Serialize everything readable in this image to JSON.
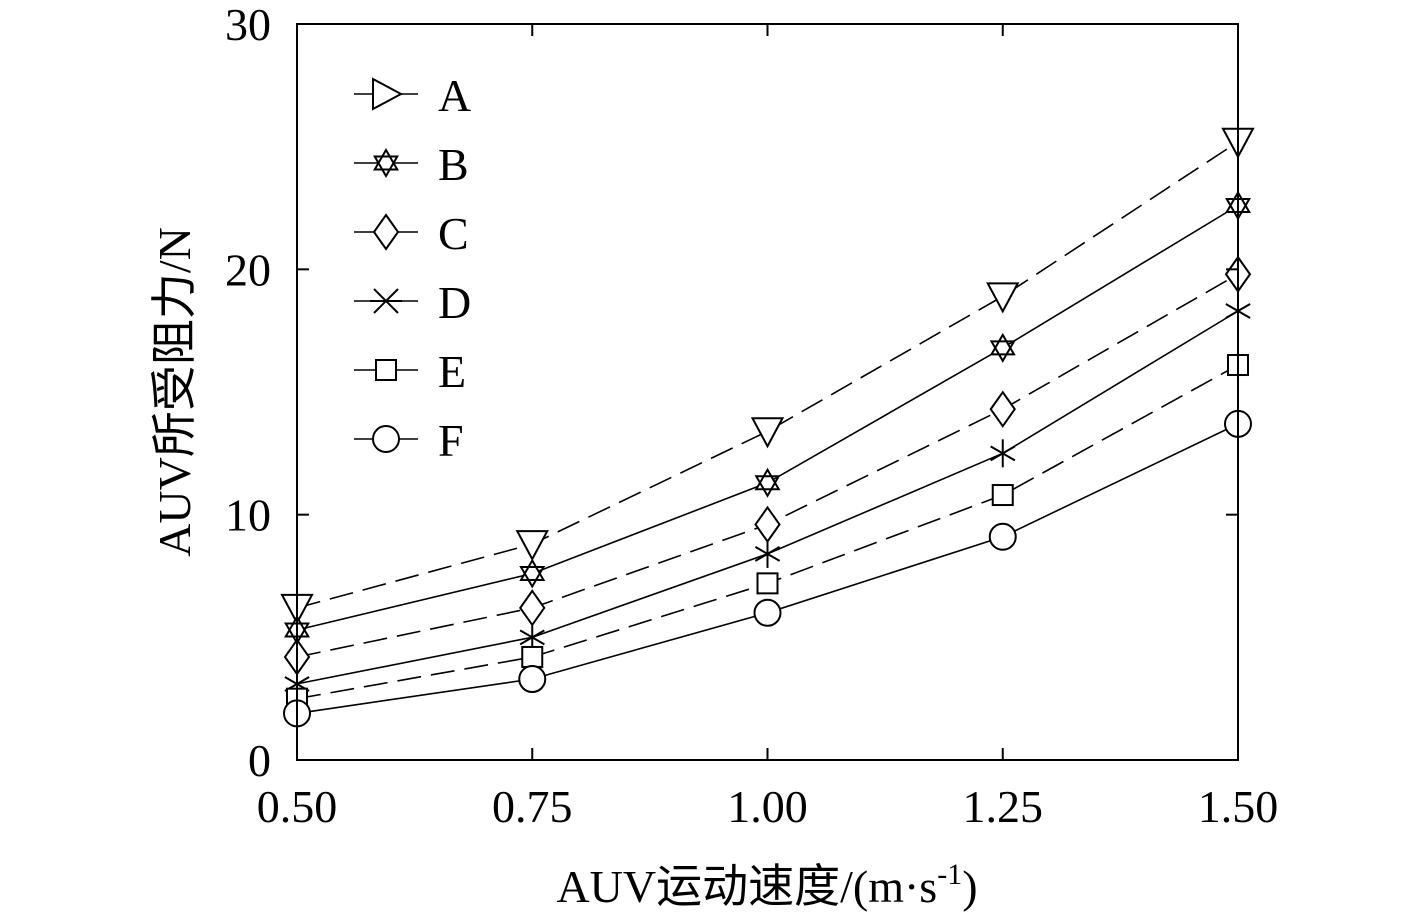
{
  "chart_data": {
    "type": "line",
    "title": "",
    "xlabel": "AUV运动速度/(m·s",
    "xlabel_sup": "-1",
    "xlabel_tail": ")",
    "ylabel": "AUV所受阻力/N",
    "x": [
      0.5,
      0.75,
      1.0,
      1.25,
      1.5
    ],
    "xticks": [
      0.5,
      0.75,
      1.0,
      1.25,
      1.5
    ],
    "xtick_labels": [
      "0.50",
      "0.75",
      "1.00",
      "1.25",
      "1.50"
    ],
    "yticks": [
      0,
      10,
      20,
      30
    ],
    "ytick_labels": [
      "0",
      "10",
      "20",
      "30"
    ],
    "xlim": [
      0.5,
      1.5
    ],
    "ylim": [
      0,
      30
    ],
    "grid": false,
    "legend_position": "top-left",
    "series": [
      {
        "name": "A",
        "marker": "triangle-down",
        "dash": "dashed",
        "values": [
          6.2,
          8.8,
          13.4,
          18.9,
          25.2
        ]
      },
      {
        "name": "B",
        "marker": "star",
        "dash": "solid",
        "values": [
          5.3,
          7.6,
          11.3,
          16.8,
          22.6
        ]
      },
      {
        "name": "C",
        "marker": "diamond",
        "dash": "dashed",
        "values": [
          4.2,
          6.2,
          9.6,
          14.3,
          19.8
        ]
      },
      {
        "name": "D",
        "marker": "star-asterisk",
        "dash": "solid",
        "values": [
          3.1,
          5.0,
          8.4,
          12.5,
          18.3
        ]
      },
      {
        "name": "E",
        "marker": "square",
        "dash": "dashed",
        "values": [
          2.5,
          4.2,
          7.2,
          10.8,
          16.1
        ]
      },
      {
        "name": "F",
        "marker": "circle",
        "dash": "solid",
        "values": [
          1.9,
          3.3,
          6.0,
          9.1,
          13.7
        ]
      }
    ]
  }
}
